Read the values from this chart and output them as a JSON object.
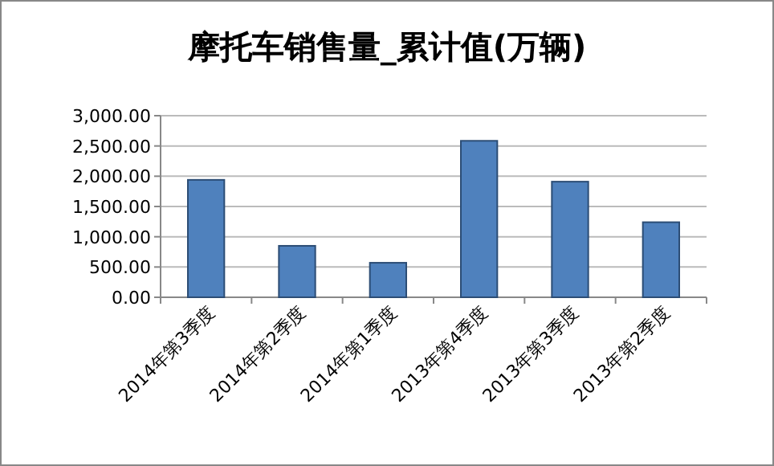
{
  "chart_data": {
    "type": "bar",
    "title": "摩托车销售量_累计值(万辆)",
    "categories": [
      "2014年第3季度",
      "2014年第2季度",
      "2014年第1季度",
      "2013年第4季度",
      "2013年第3季度",
      "2013年第2季度"
    ],
    "values": [
      1940,
      850,
      570,
      2585,
      1910,
      1240
    ],
    "color": "#4f81bd",
    "ylim": [
      0,
      3000
    ],
    "yticks": [
      {
        "value": 0,
        "label": "0.00"
      },
      {
        "value": 500,
        "label": "500.00"
      },
      {
        "value": 1000,
        "label": "1,000.00"
      },
      {
        "value": 1500,
        "label": "1,500.00"
      },
      {
        "value": 2000,
        "label": "2,000.00"
      },
      {
        "value": 2500,
        "label": "2,500.00"
      },
      {
        "value": 3000,
        "label": "3,000.00"
      }
    ],
    "grid": true
  }
}
